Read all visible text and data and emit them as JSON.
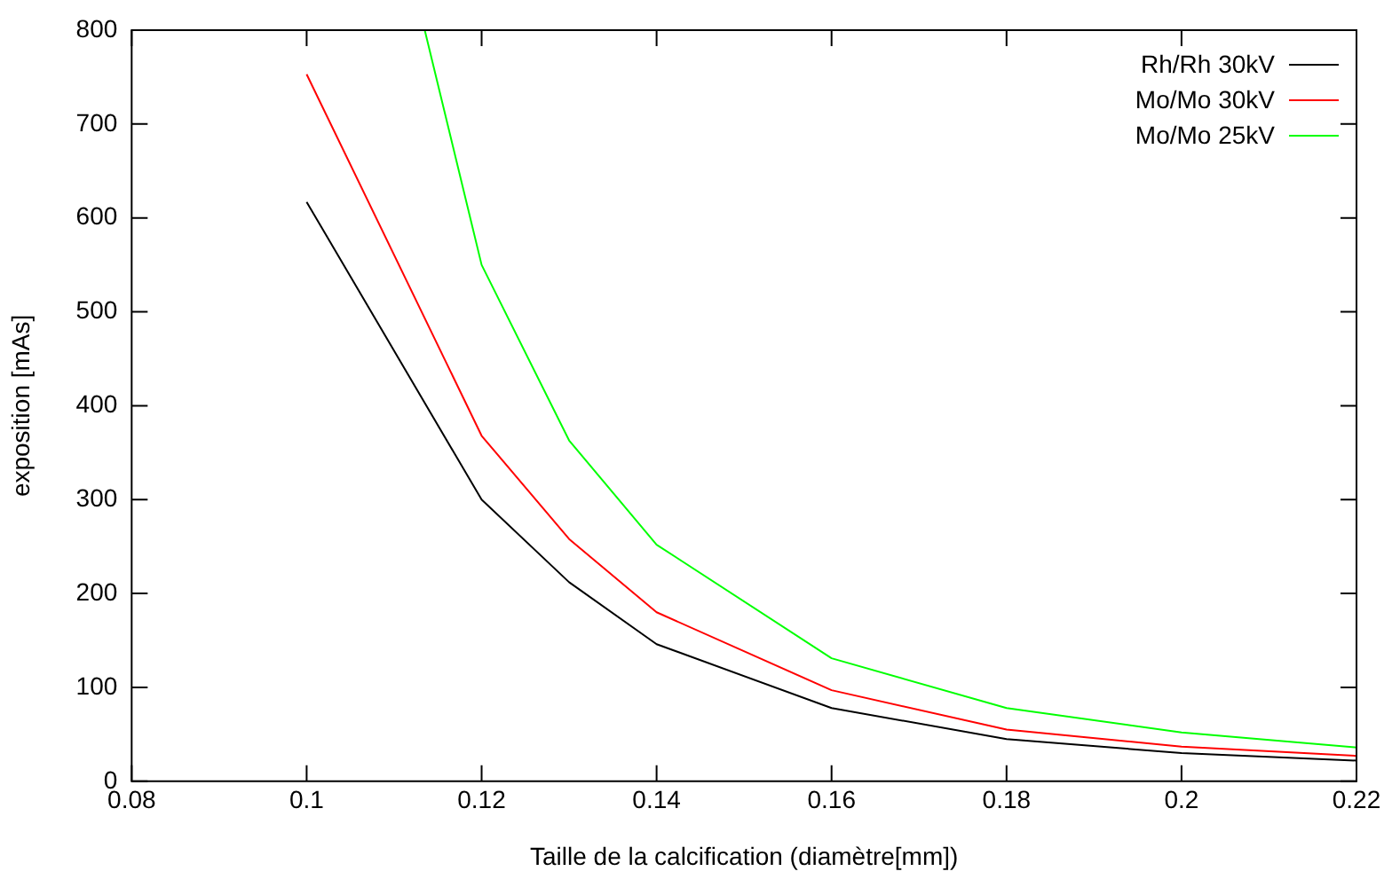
{
  "chart_data": {
    "type": "line",
    "xlabel": "Taille de la calcification (diamètre[mm])",
    "ylabel": "exposition [mAs]",
    "x": [
      0.1,
      0.12,
      0.13,
      0.14,
      0.16,
      0.18,
      0.2,
      0.22
    ],
    "series": [
      {
        "name": "Rh/Rh 30kV",
        "color": "#000000",
        "values": [
          617,
          300,
          212,
          146,
          78,
          45,
          30,
          22
        ]
      },
      {
        "name": "Mo/Mo 30kV",
        "color": "#ff0000",
        "values": [
          753,
          368,
          258,
          180,
          97,
          55,
          37,
          27
        ]
      },
      {
        "name": "Mo/Mo 25kV",
        "color": "#00ff00",
        "x": [
          0.1135,
          0.12,
          0.13,
          0.14,
          0.16,
          0.18,
          0.2,
          0.22
        ],
        "values": [
          800,
          550,
          363,
          252,
          131,
          78,
          52,
          36
        ]
      }
    ],
    "xlim": [
      0.08,
      0.22
    ],
    "xticks": [
      0.08,
      0.1,
      0.12,
      0.14,
      0.16,
      0.18,
      0.2,
      0.22
    ],
    "ylim": [
      0,
      800
    ],
    "yticks": [
      0,
      100,
      200,
      300,
      400,
      500,
      600,
      700,
      800
    ],
    "grid": false,
    "legend": "top right",
    "marker": "none",
    "line_style": "solid"
  }
}
